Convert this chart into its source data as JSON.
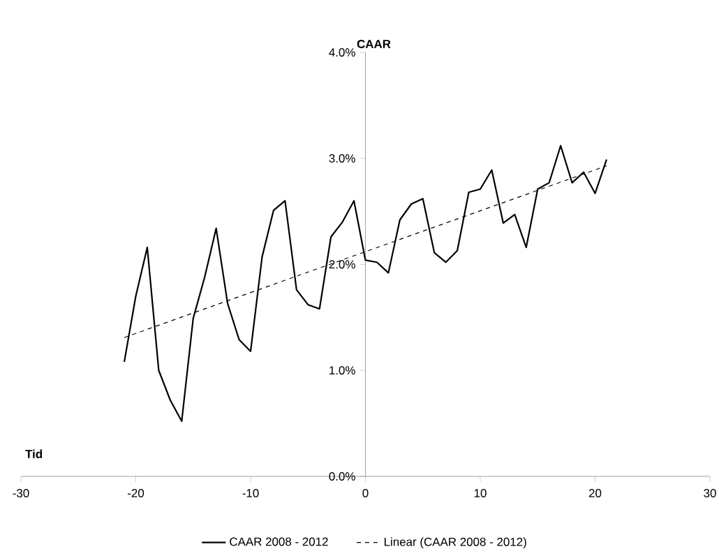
{
  "chart_data": {
    "type": "line",
    "xlabel": "Tid",
    "ylabel": "CAAR",
    "xlim": [
      -30,
      30
    ],
    "ylim": [
      0,
      4
    ],
    "xticks": [
      -30,
      -20,
      -10,
      0,
      10,
      20,
      30
    ],
    "yticks": [
      {
        "value": 0,
        "label": "0.0%"
      },
      {
        "value": 1,
        "label": "1.0%"
      },
      {
        "value": 2,
        "label": "2.0%"
      },
      {
        "value": 3,
        "label": "3.0%"
      },
      {
        "value": 4,
        "label": "4.0%"
      }
    ],
    "x": [
      -21,
      -20,
      -19,
      -18,
      -17,
      -16,
      -15,
      -14,
      -13,
      -12,
      -11,
      -10,
      -9,
      -8,
      -7,
      -6,
      -5,
      -4,
      -3,
      -2,
      -1,
      0,
      1,
      2,
      3,
      4,
      5,
      6,
      7,
      8,
      9,
      10,
      11,
      12,
      13,
      14,
      15,
      16,
      17,
      18,
      19,
      20,
      21
    ],
    "grid": false,
    "legend": "bottom",
    "series": [
      {
        "name": "CAAR 2008 - 2012",
        "color": "#000000",
        "line_style": "solid",
        "values": [
          1.08,
          1.7,
          2.16,
          1.0,
          0.72,
          0.52,
          1.49,
          1.88,
          2.34,
          1.63,
          1.29,
          1.18,
          2.07,
          2.51,
          2.6,
          1.76,
          1.62,
          1.58,
          2.26,
          2.4,
          2.6,
          2.04,
          2.02,
          1.92,
          2.42,
          2.57,
          2.62,
          2.11,
          2.02,
          2.13,
          2.68,
          2.71,
          2.89,
          2.39,
          2.47,
          2.16,
          2.71,
          2.77,
          3.12,
          2.77,
          2.87,
          2.67,
          2.99
        ]
      },
      {
        "name": "Linear (CAAR 2008 - 2012)",
        "color": "#000000",
        "line_style": "dashed",
        "x": [
          -21,
          21
        ],
        "values": [
          1.31,
          2.93
        ]
      }
    ]
  }
}
